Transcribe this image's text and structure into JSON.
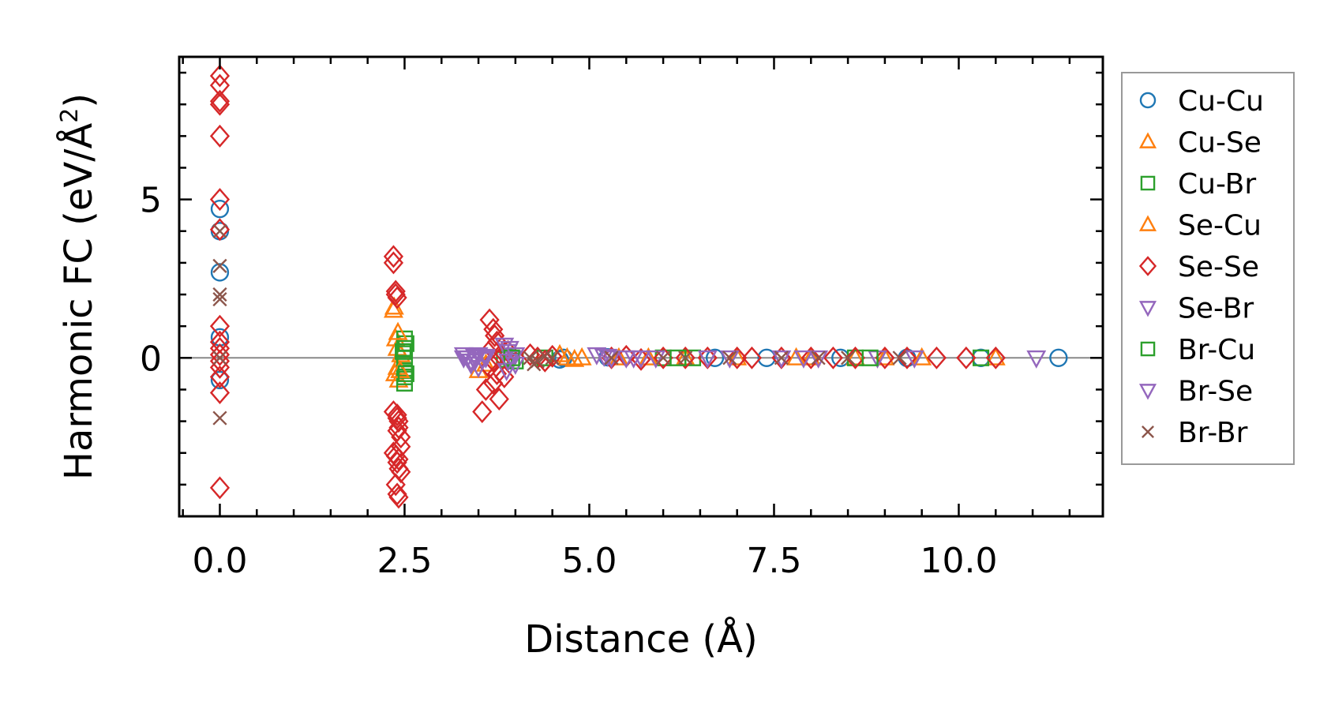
{
  "chart_data": {
    "type": "scatter",
    "title": "",
    "xlabel": "Distance (Å)",
    "ylabel_main": "Harmonic FC (eV/Å",
    "ylabel_sup": "2",
    "ylabel_close": ")",
    "xlim": [
      -0.55,
      11.95
    ],
    "ylim": [
      -5.0,
      9.5
    ],
    "xticks": [
      0.0,
      2.5,
      5.0,
      7.5,
      10.0
    ],
    "xtick_labels": [
      "0.0",
      "2.5",
      "5.0",
      "7.5",
      "10.0"
    ],
    "yticks": [
      0,
      5
    ],
    "ytick_labels": [
      "0",
      "5"
    ],
    "zero_line": true,
    "legend_position": "outside-right",
    "series": [
      {
        "name": "Cu-Cu",
        "color": "#1f77b4",
        "marker": "circle",
        "x": [
          0.0,
          0.0,
          0.0,
          0.0,
          0.0,
          4.6,
          4.65,
          5.25,
          6.7,
          7.4,
          8.4,
          9.3,
          10.3,
          11.35
        ],
        "y": [
          4.7,
          2.7,
          0.65,
          -0.7,
          4.0,
          -0.05,
          0.0,
          0.02,
          0.0,
          0.0,
          0.0,
          0.0,
          0.0,
          0.0
        ]
      },
      {
        "name": "Cu-Se",
        "color": "#ff7f0e",
        "marker": "triangle-up",
        "x": [
          2.35,
          2.38,
          2.4,
          2.4,
          2.42,
          2.45,
          2.37,
          3.5,
          3.6,
          4.6,
          4.8,
          4.9,
          5.4,
          6.3,
          7.0,
          8.0,
          8.6,
          9.5,
          10.5
        ],
        "y": [
          1.5,
          0.6,
          0.3,
          -0.3,
          -0.7,
          0.1,
          -0.5,
          -0.4,
          -0.2,
          0.1,
          -0.05,
          0.0,
          0.0,
          0.0,
          0.0,
          0.0,
          0.0,
          0.0,
          0.0
        ]
      },
      {
        "name": "Cu-Br",
        "color": "#2ca02c",
        "marker": "square",
        "x": [
          2.5,
          2.5,
          2.5,
          2.5,
          2.5,
          2.5,
          2.5,
          2.52,
          3.85,
          3.9,
          4.0,
          4.4,
          6.0,
          6.4,
          8.6,
          10.3
        ],
        "y": [
          0.6,
          0.3,
          0.0,
          -0.2,
          -0.4,
          -0.6,
          -0.8,
          0.45,
          -0.05,
          0.05,
          -0.1,
          0.0,
          0.0,
          0.0,
          0.0,
          0.0
        ]
      },
      {
        "name": "Se-Cu",
        "color": "#ff7f0e",
        "marker": "triangle-up",
        "x": [
          2.36,
          2.41,
          2.44,
          4.7,
          5.8,
          7.8,
          9.0
        ],
        "y": [
          1.6,
          0.8,
          -0.4,
          0.0,
          0.0,
          0.0,
          0.0
        ]
      },
      {
        "name": "Se-Se",
        "color": "#d62728",
        "marker": "diamond",
        "x": [
          0.0,
          0.0,
          0.0,
          0.0,
          0.0,
          0.0,
          0.0,
          0.0,
          0.0,
          0.0,
          0.0,
          0.0,
          0.0,
          0.0,
          0.0,
          0.0,
          2.35,
          2.35,
          2.38,
          2.38,
          2.4,
          2.4,
          2.4,
          2.42,
          2.42,
          2.45,
          2.35,
          2.38,
          2.4,
          2.42,
          2.45,
          2.38,
          2.4,
          2.42,
          2.35,
          2.4,
          2.42,
          2.45,
          3.65,
          3.7,
          3.72,
          3.75,
          3.68,
          3.8,
          3.7,
          3.65,
          3.75,
          3.7,
          3.6,
          3.55,
          3.78,
          3.85,
          3.9,
          4.2,
          4.3,
          4.4,
          4.5,
          5.3,
          5.5,
          5.7,
          6.0,
          6.3,
          6.6,
          7.0,
          7.2,
          7.6,
          8.0,
          8.3,
          8.6,
          9.0,
          9.3,
          9.7,
          10.1,
          10.5
        ],
        "y": [
          8.9,
          8.6,
          8.1,
          8.0,
          7.0,
          5.0,
          4.05,
          1.0,
          0.5,
          0.3,
          0.1,
          -0.1,
          -0.3,
          -0.6,
          -1.1,
          -4.1,
          3.2,
          3.0,
          2.1,
          2.0,
          1.9,
          -1.8,
          -1.9,
          -2.0,
          -2.2,
          -2.5,
          -3.0,
          -3.1,
          -3.3,
          -3.5,
          -2.8,
          -4.0,
          -4.3,
          -4.4,
          -1.7,
          -2.3,
          -3.2,
          -3.6,
          1.2,
          0.9,
          0.7,
          0.5,
          0.3,
          0.1,
          -0.1,
          -0.3,
          -0.5,
          -0.8,
          -1.0,
          -1.7,
          -1.3,
          -0.6,
          0.2,
          0.1,
          0.0,
          -0.1,
          0.05,
          0.0,
          0.05,
          -0.05,
          0.0,
          0.0,
          0.0,
          0.0,
          0.0,
          0.0,
          0.0,
          0.0,
          0.0,
          0.0,
          0.0,
          0.0,
          0.0,
          0.0
        ]
      },
      {
        "name": "Se-Br",
        "color": "#9467bd",
        "marker": "triangle-down",
        "x": [
          3.3,
          3.35,
          3.4,
          3.45,
          3.5,
          3.55,
          3.6,
          3.4,
          3.5,
          3.85,
          3.9,
          3.95,
          4.0,
          3.88,
          3.92,
          5.1,
          5.2,
          5.3,
          5.5,
          5.7,
          5.9,
          6.6,
          7.6,
          7.9,
          8.9,
          9.4,
          11.05
        ],
        "y": [
          0.1,
          0.0,
          -0.1,
          0.05,
          0.1,
          -0.05,
          0.0,
          -0.2,
          -0.3,
          0.4,
          0.2,
          0.0,
          -0.2,
          -0.4,
          0.3,
          0.1,
          0.05,
          0.0,
          0.0,
          0.0,
          0.0,
          0.0,
          0.0,
          0.0,
          0.0,
          0.0,
          0.0
        ]
      },
      {
        "name": "Br-Cu",
        "color": "#2ca02c",
        "marker": "square",
        "x": [
          2.48,
          2.52,
          3.95,
          6.2,
          8.8
        ],
        "y": [
          0.2,
          -0.5,
          0.0,
          0.0,
          0.0
        ]
      },
      {
        "name": "Br-Se",
        "color": "#9467bd",
        "marker": "triangle-down",
        "x": [
          3.3,
          3.45,
          3.6,
          3.9,
          4.0,
          5.25,
          5.6,
          6.9,
          8.1
        ],
        "y": [
          0.0,
          -0.1,
          0.05,
          -0.1,
          0.1,
          0.05,
          0.0,
          0.0,
          0.0
        ]
      },
      {
        "name": "Br-Br",
        "color": "#8c564b",
        "marker": "x",
        "x": [
          0.0,
          0.0,
          0.0,
          0.0,
          0.0,
          0.0,
          4.2,
          4.3,
          4.4,
          4.5,
          4.25,
          5.3,
          6.0,
          6.3,
          6.9,
          7.6,
          8.1,
          8.5,
          9.2
        ],
        "y": [
          4.0,
          2.9,
          2.0,
          1.85,
          0.0,
          -1.9,
          0.0,
          -0.1,
          0.05,
          0.0,
          -0.2,
          0.0,
          0.0,
          0.0,
          0.0,
          0.0,
          0.0,
          0.0,
          0.0
        ]
      }
    ]
  }
}
